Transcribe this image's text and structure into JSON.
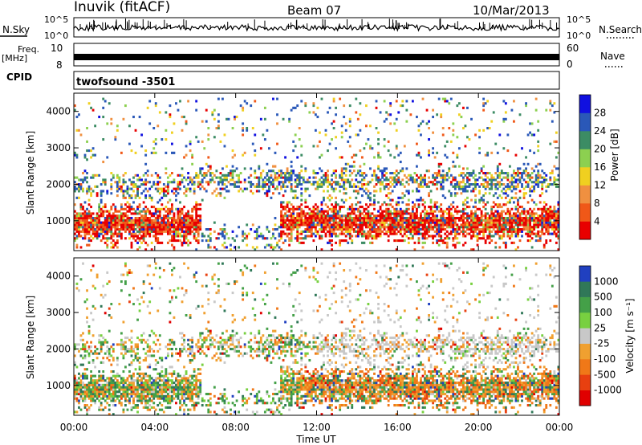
{
  "header": {
    "title": "Inuvik (fitACF)",
    "beam": "Beam 07",
    "date": "10/Mar/2013"
  },
  "nsky_panel": {
    "left_label": "N.Sky",
    "right_label": "N.Search",
    "y_ticks_left": [
      "10^5",
      "10^0"
    ],
    "y_ticks_right": [
      "10^5",
      "10^0"
    ]
  },
  "freq_panel": {
    "left_label_line1": "Freq.",
    "left_label_line2": "[MHz]",
    "right_label": "Nave",
    "y_ticks_left": [
      "10",
      "8"
    ],
    "y_ticks_right": [
      "60",
      "0"
    ]
  },
  "cpid_panel": {
    "label": "CPID",
    "program": "twofsound  -3501"
  },
  "chart_data": [
    {
      "type": "heatmap",
      "name": "power",
      "ylabel": "Slant Range [km]",
      "y_ticks": [
        1000,
        2000,
        3000,
        4000
      ],
      "ylim": [
        180,
        4500
      ],
      "colorbar_label": "Power [dB]",
      "colorbar_ticks": [
        "4",
        "8",
        "12",
        "16",
        "20",
        "24",
        "28"
      ],
      "colors": [
        "#1010e0",
        "#2a58b8",
        "#3c8c64",
        "#8cd050",
        "#f0d020",
        "#f09040",
        "#f05818",
        "#e80000"
      ]
    },
    {
      "type": "heatmap",
      "name": "velocity",
      "ylabel": "Slant Range [km]",
      "xlabel": "Time UT",
      "y_ticks": [
        1000,
        2000,
        3000,
        4000
      ],
      "ylim": [
        180,
        4500
      ],
      "x_ticks": [
        "00:00",
        "04:00",
        "08:00",
        "12:00",
        "16:00",
        "20:00",
        "00:00"
      ],
      "colorbar_label": "Velocity [m s⁻¹]",
      "colorbar_ticks": [
        "1000",
        "500",
        "100",
        "25",
        "-25",
        "-100",
        "-500",
        "-1000"
      ],
      "colors": [
        "#2040c0",
        "#307858",
        "#44a048",
        "#78d040",
        "#c8c8c8",
        "#f0a030",
        "#f07818",
        "#e84010",
        "#e00000"
      ]
    }
  ]
}
